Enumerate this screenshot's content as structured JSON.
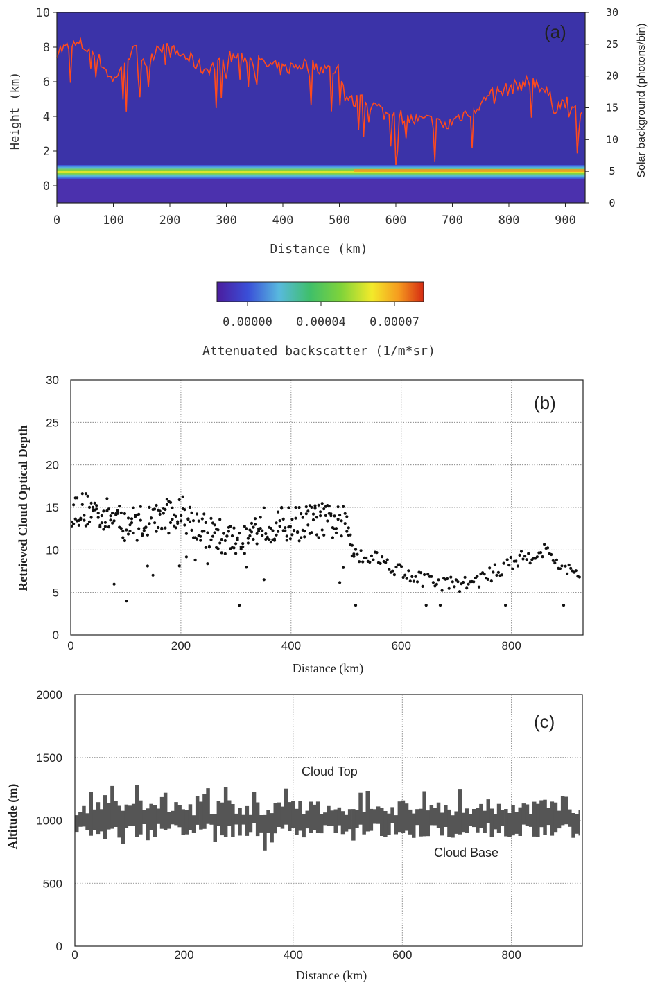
{
  "colors": {
    "background_purple": "#3b33a8",
    "top_line": "#ff4a1c",
    "dots": "#111111",
    "bars": "#555555",
    "colormap": [
      "#4b1c9e",
      "#3a4fd8",
      "#58b9de",
      "#3fbf6a",
      "#7fd33a",
      "#f3ea2a",
      "#f59a1f",
      "#d52a12"
    ]
  },
  "chart_data": [
    {
      "id": "a",
      "type": "heatmap",
      "panel_label": "(a)",
      "title": "",
      "xlabel": "Distance (km)",
      "ylabel": "Height (km)",
      "y2label": "Solar background (photons/bin)",
      "xlim": [
        0,
        935
      ],
      "ylim": [
        -1,
        10
      ],
      "y2lim": [
        0,
        30
      ],
      "xticks": [
        "0",
        "100",
        "200",
        "300",
        "400",
        "500",
        "600",
        "700",
        "800",
        "900"
      ],
      "yticks": [
        "0",
        "2",
        "4",
        "6",
        "8",
        "10"
      ],
      "y2ticks": [
        "0",
        "5",
        "10",
        "15",
        "20",
        "25",
        "30"
      ],
      "colorbar": {
        "label": "Attenuated backscatter (1/m*sr)",
        "ticks": [
          "0.00000",
          "0.00004",
          "0.00007"
        ]
      },
      "solar_background_series": {
        "name": "",
        "x": [
          0,
          40,
          60,
          80,
          100,
          120,
          140,
          160,
          180,
          200,
          230,
          260,
          290,
          300,
          330,
          360,
          400,
          440,
          480,
          500,
          510,
          520,
          540,
          570,
          580,
          600,
          630,
          660,
          690,
          700,
          720,
          740,
          770,
          800,
          830,
          850,
          870,
          880,
          900,
          930
        ],
        "y": [
          24,
          25,
          24,
          22,
          19,
          23,
          24,
          22,
          25,
          24,
          23,
          21,
          22,
          23,
          23,
          22,
          21,
          22,
          21,
          21,
          17,
          16,
          16,
          15,
          14,
          14,
          13,
          13,
          12,
          13,
          14,
          15,
          17,
          18,
          19,
          19,
          17,
          15,
          16,
          14
        ]
      },
      "cloud_layer_height_km": 0.8
    },
    {
      "id": "b",
      "type": "scatter",
      "panel_label": "(b)",
      "title": "",
      "xlabel": "Distance (km)",
      "ylabel": "Retrieved Cloud Optical Depth",
      "xlim": [
        0,
        930
      ],
      "ylim": [
        0,
        30
      ],
      "xticks": [
        "0",
        "200",
        "400",
        "600",
        "800"
      ],
      "yticks": [
        "0",
        "5",
        "10",
        "15",
        "20",
        "25",
        "30"
      ],
      "trend_x": [
        0,
        50,
        100,
        150,
        200,
        250,
        300,
        350,
        400,
        450,
        500,
        520,
        560,
        600,
        640,
        680,
        720,
        760,
        800,
        840,
        860,
        900,
        925
      ],
      "trend_y": [
        15,
        14.5,
        13,
        13.5,
        14.5,
        12,
        11,
        13,
        13,
        13.5,
        13,
        9.5,
        9,
        7.5,
        6.5,
        6,
        6,
        7,
        8.5,
        9.5,
        10,
        7.5,
        7
      ],
      "grid": true
    },
    {
      "id": "c",
      "type": "area",
      "panel_label": "(c)",
      "title": "",
      "xlabel": "Distance (km)",
      "ylabel": "Altitude (m)",
      "xlim": [
        0,
        930
      ],
      "ylim": [
        0,
        2000
      ],
      "xticks": [
        "0",
        "200",
        "400",
        "600",
        "800"
      ],
      "yticks": [
        "0",
        "500",
        "1000",
        "1500",
        "2000"
      ],
      "annotations": [
        "Cloud Top",
        "Cloud Base"
      ],
      "cloud_top_m": 1100,
      "cloud_base_m": 920,
      "grid": true
    }
  ]
}
